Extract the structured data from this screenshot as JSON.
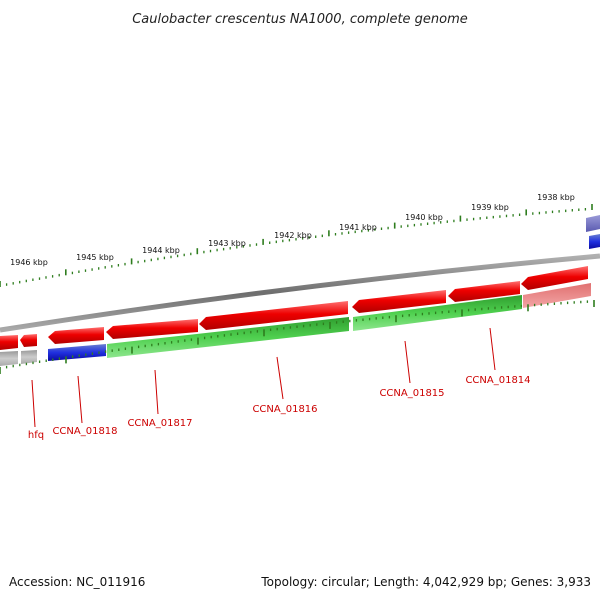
{
  "title": "Caulobacter crescentus NA1000, complete genome",
  "footer": {
    "accession": "Accession: NC_011916",
    "topology": "Topology: circular; Length: 4,042,929 bp; Genes: 3,933"
  },
  "ruler": {
    "ticks": [
      "1938 kbp",
      "1939 kbp",
      "1940 kbp",
      "1941 kbp",
      "1942 kbp",
      "1943 kbp",
      "1944 kbp",
      "1945 kbp",
      "1946 kbp"
    ]
  },
  "genes": [
    {
      "name": "hfq"
    },
    {
      "name": "CCNA_01818"
    },
    {
      "name": "CCNA_01817"
    },
    {
      "name": "CCNA_01816"
    },
    {
      "name": "CCNA_01815"
    },
    {
      "name": "CCNA_01814"
    }
  ],
  "colors": {
    "forward_strand": "#ee0000",
    "cds": "#22aa22",
    "rna": "#1a1aee",
    "backbone": "#888888",
    "tick": "#2e7d1e",
    "label": "#cc0000"
  }
}
